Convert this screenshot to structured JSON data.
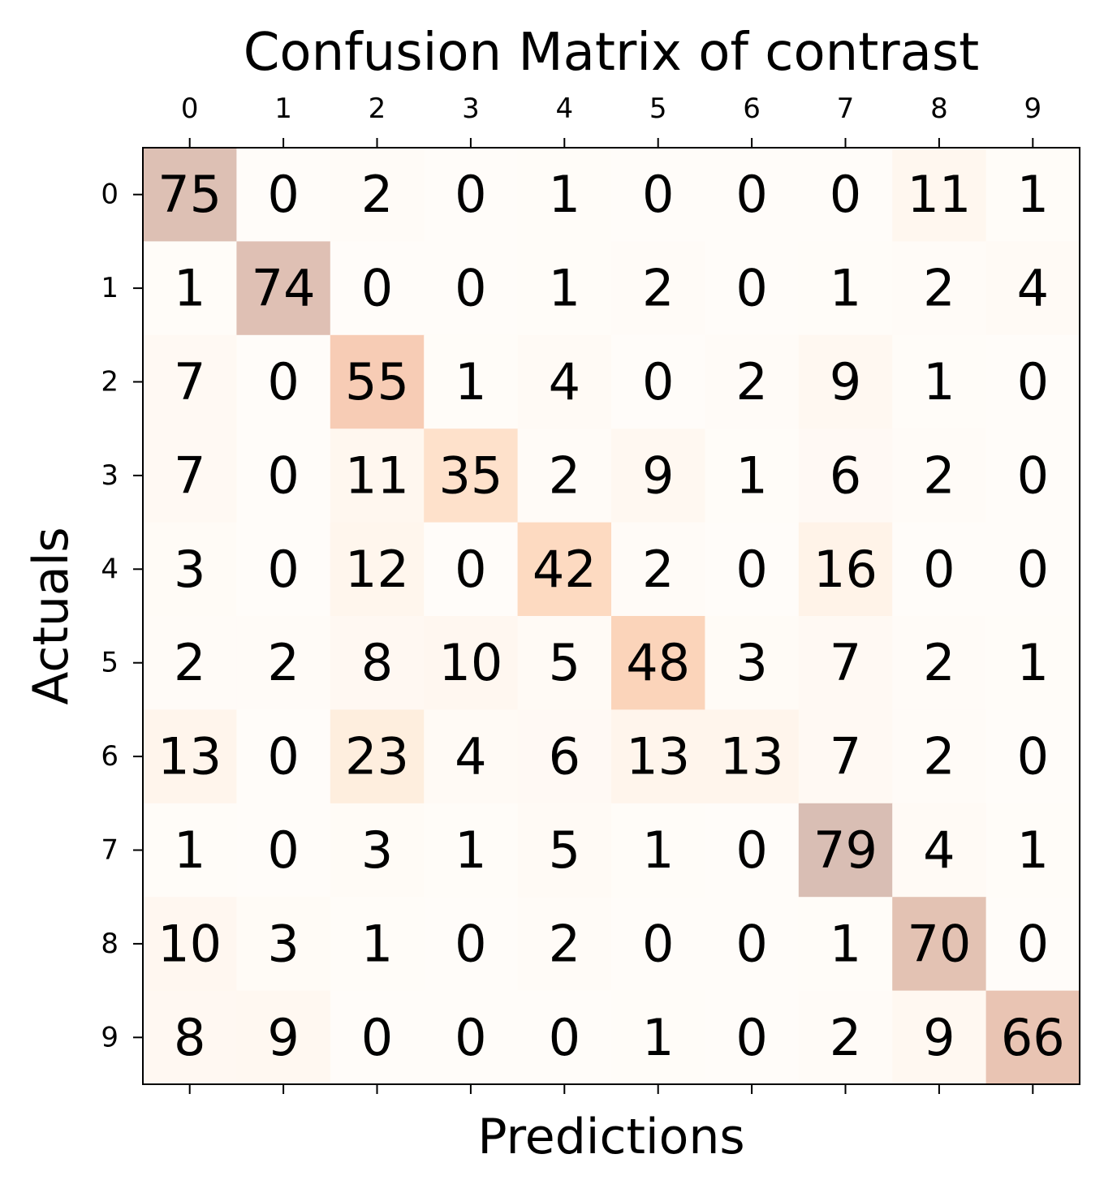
{
  "chart_data": {
    "type": "heatmap",
    "title": "Confusion Matrix of contrast",
    "xlabel": "Predictions",
    "ylabel": "Actuals",
    "x_categories": [
      "0",
      "1",
      "2",
      "3",
      "4",
      "5",
      "6",
      "7",
      "8",
      "9"
    ],
    "y_categories": [
      "0",
      "1",
      "2",
      "3",
      "4",
      "5",
      "6",
      "7",
      "8",
      "9"
    ],
    "matrix": [
      [
        75,
        0,
        2,
        0,
        1,
        0,
        0,
        0,
        11,
        1
      ],
      [
        1,
        74,
        0,
        0,
        1,
        2,
        0,
        1,
        2,
        4
      ],
      [
        7,
        0,
        55,
        1,
        4,
        0,
        2,
        9,
        1,
        0
      ],
      [
        7,
        0,
        11,
        35,
        2,
        9,
        1,
        6,
        2,
        0
      ],
      [
        3,
        0,
        12,
        0,
        42,
        2,
        0,
        16,
        0,
        0
      ],
      [
        2,
        2,
        8,
        10,
        5,
        48,
        3,
        7,
        2,
        1
      ],
      [
        13,
        0,
        23,
        4,
        6,
        13,
        13,
        7,
        2,
        0
      ],
      [
        1,
        0,
        3,
        1,
        5,
        1,
        0,
        79,
        4,
        1
      ],
      [
        10,
        3,
        1,
        0,
        2,
        0,
        0,
        1,
        70,
        0
      ],
      [
        8,
        9,
        0,
        0,
        0,
        1,
        0,
        2,
        9,
        66
      ]
    ],
    "colormap": "Oranges",
    "cell_alpha": 0.3,
    "x_ticks_position": "top",
    "grid": false,
    "colors": {
      "low": "#fff5eb",
      "mid": "#fd8d3c",
      "high": "#7f2704"
    }
  }
}
